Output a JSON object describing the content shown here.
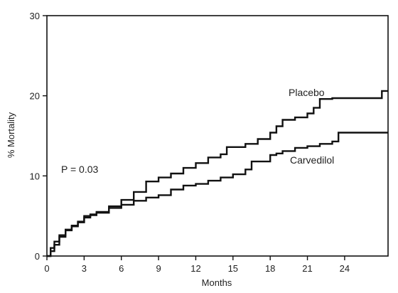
{
  "chart_data": {
    "type": "line",
    "xlabel": "Months",
    "ylabel": "% Mortality",
    "xlim": [
      0,
      27.5
    ],
    "ylim": [
      0,
      30
    ],
    "xticks": [
      0,
      3,
      6,
      9,
      12,
      15,
      18,
      21,
      24
    ],
    "yticks": [
      0,
      10,
      20,
      30
    ],
    "annotation": "P = 0.03",
    "series": [
      {
        "name": "Placebo",
        "x": [
          0,
          0.3,
          0.6,
          1.0,
          1.5,
          2.0,
          2.5,
          3.0,
          3.5,
          4.0,
          5.0,
          6.0,
          7.0,
          8.0,
          9.0,
          10.0,
          11.0,
          12.0,
          13.0,
          14.0,
          14.5,
          15.0,
          16.0,
          17.0,
          18.0,
          18.5,
          19.0,
          20.0,
          21.0,
          21.5,
          22.0,
          23.0,
          24.0,
          25.0,
          26.0,
          27.0,
          27.5
        ],
        "y": [
          0,
          1.0,
          1.8,
          2.6,
          3.2,
          3.7,
          4.2,
          4.8,
          5.1,
          5.4,
          6.0,
          7.0,
          8.0,
          9.3,
          9.8,
          10.3,
          11.0,
          11.6,
          12.3,
          12.7,
          13.6,
          13.6,
          14.0,
          14.6,
          15.4,
          16.2,
          17.0,
          17.3,
          17.8,
          18.5,
          19.6,
          19.7,
          19.7,
          19.7,
          19.7,
          20.6,
          20.6
        ]
      },
      {
        "name": "Carvedilol",
        "x": [
          0,
          0.3,
          0.6,
          1.0,
          1.5,
          2.0,
          2.5,
          3.0,
          3.5,
          4.0,
          5.0,
          6.0,
          7.0,
          8.0,
          9.0,
          10.0,
          11.0,
          12.0,
          13.0,
          14.0,
          15.0,
          16.0,
          16.5,
          17.0,
          18.0,
          18.5,
          19.0,
          20.0,
          21.0,
          22.0,
          23.0,
          23.5,
          24.0,
          25.0,
          26.0,
          27.0,
          27.5
        ],
        "y": [
          0,
          0.6,
          1.4,
          2.4,
          3.3,
          3.8,
          4.3,
          5.0,
          5.2,
          5.5,
          6.2,
          6.4,
          6.9,
          7.3,
          7.6,
          8.3,
          8.8,
          9.0,
          9.4,
          9.8,
          10.2,
          10.8,
          11.8,
          11.8,
          12.6,
          12.8,
          13.1,
          13.5,
          13.7,
          14.0,
          14.3,
          15.4,
          15.4,
          15.4,
          15.4,
          15.4,
          15.4
        ]
      }
    ]
  }
}
